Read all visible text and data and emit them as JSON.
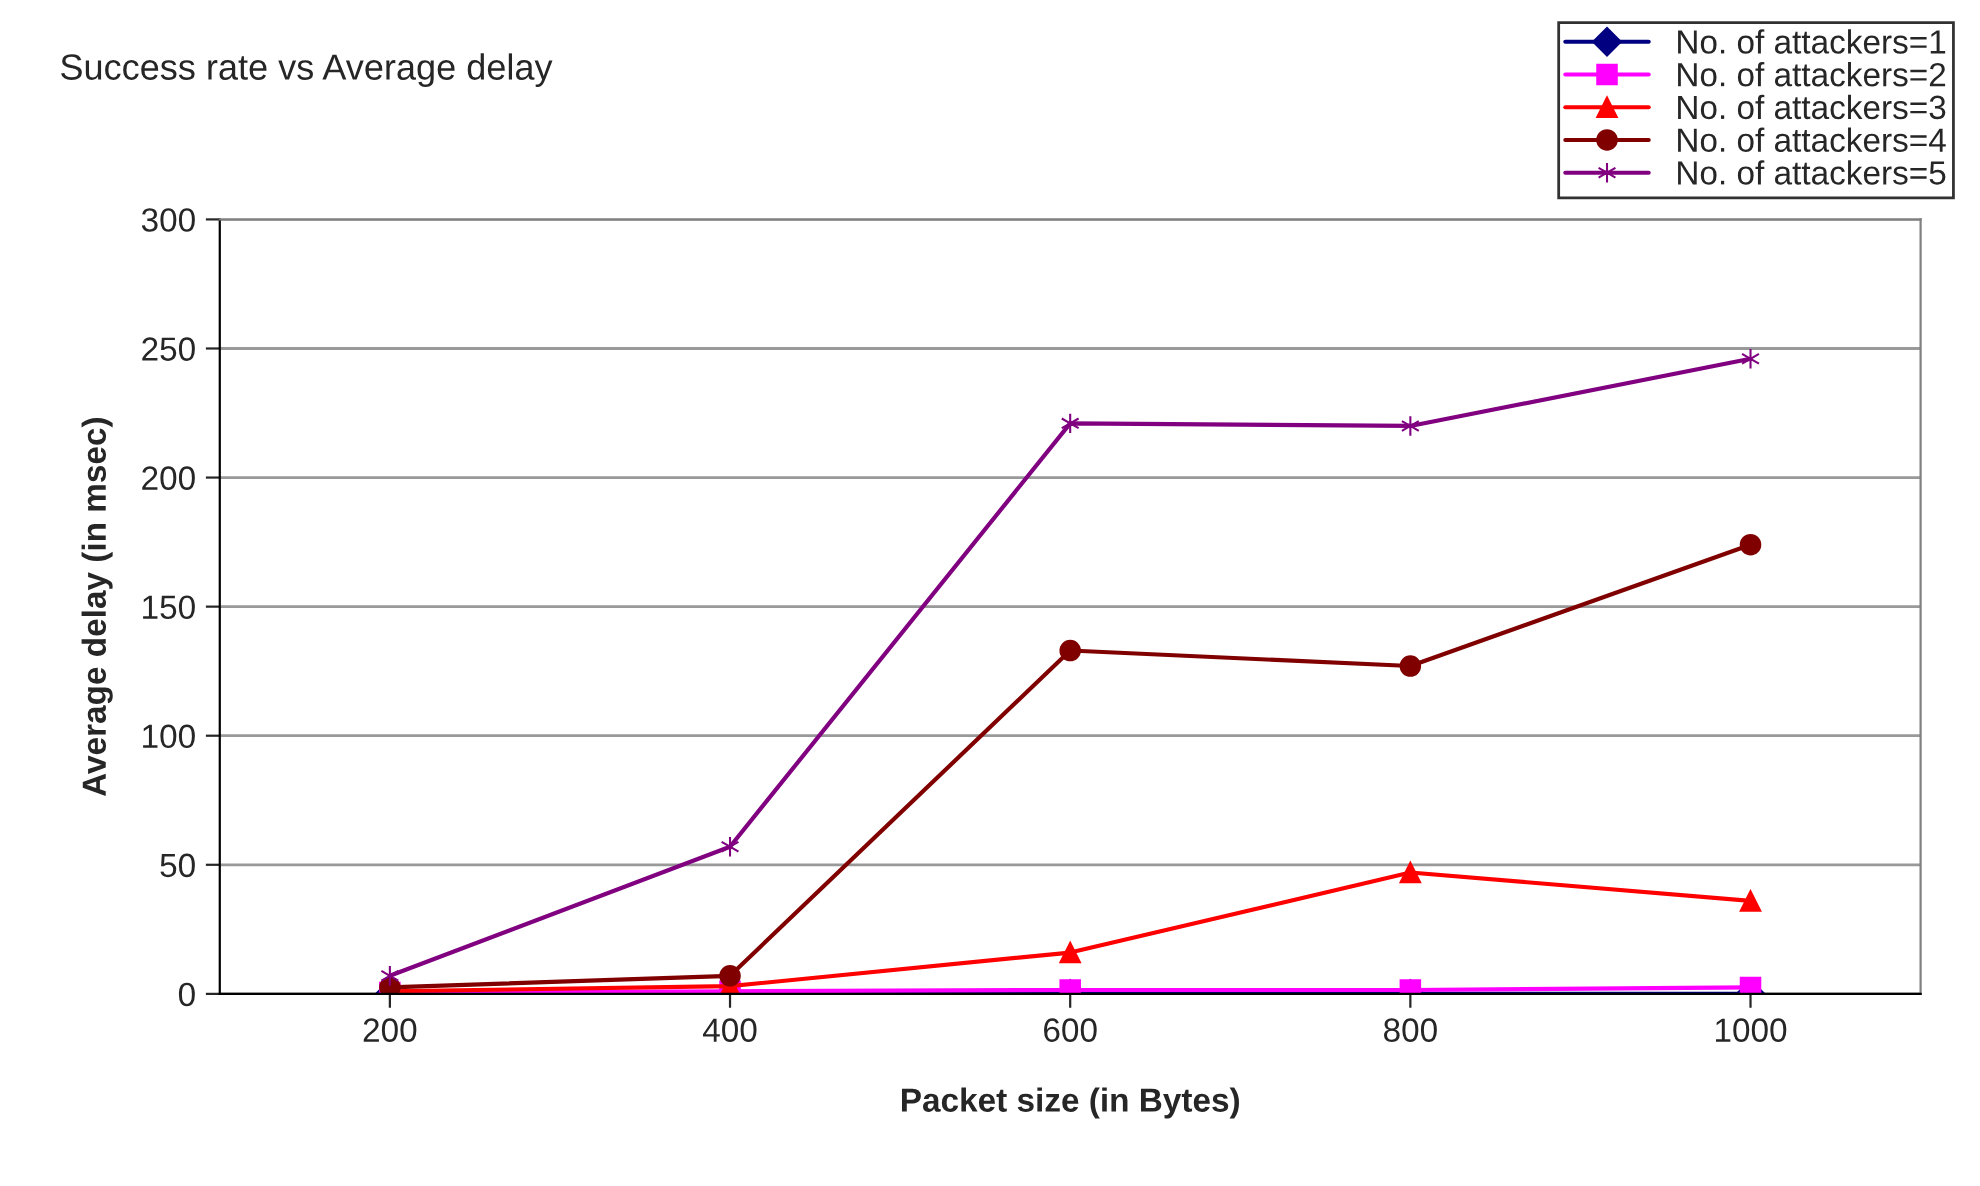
{
  "chart_data": {
    "type": "line",
    "title": "Success rate vs Average delay",
    "xlabel": "Packet size (in Bytes)",
    "ylabel": "Average delay (in msec)",
    "categories": [
      "200",
      "400",
      "600",
      "800",
      "1000"
    ],
    "series": [
      {
        "name": "No. of attackers=1",
        "color": "#000080",
        "marker": "diamond",
        "values": [
          0,
          0,
          0,
          0,
          0
        ]
      },
      {
        "name": "No. of attackers=2",
        "color": "#ff00ff",
        "marker": "square",
        "values": [
          0.5,
          1,
          1.5,
          1.5,
          2.5
        ]
      },
      {
        "name": "No. of attackers=3",
        "color": "#ff0000",
        "marker": "triangle",
        "values": [
          1,
          3,
          16,
          47,
          36
        ]
      },
      {
        "name": "No. of attackers=4",
        "color": "#800000",
        "marker": "circle",
        "values": [
          2.5,
          7,
          133,
          127,
          174
        ]
      },
      {
        "name": "No. of attackers=5",
        "color": "#800080",
        "marker": "cross",
        "values": [
          7,
          57,
          221,
          220,
          246
        ]
      }
    ],
    "ylim": [
      0,
      300
    ],
    "yticks": [
      0,
      50,
      100,
      150,
      200,
      250,
      300
    ],
    "grid": "y",
    "legend": "top right",
    "line_style": "solid"
  }
}
